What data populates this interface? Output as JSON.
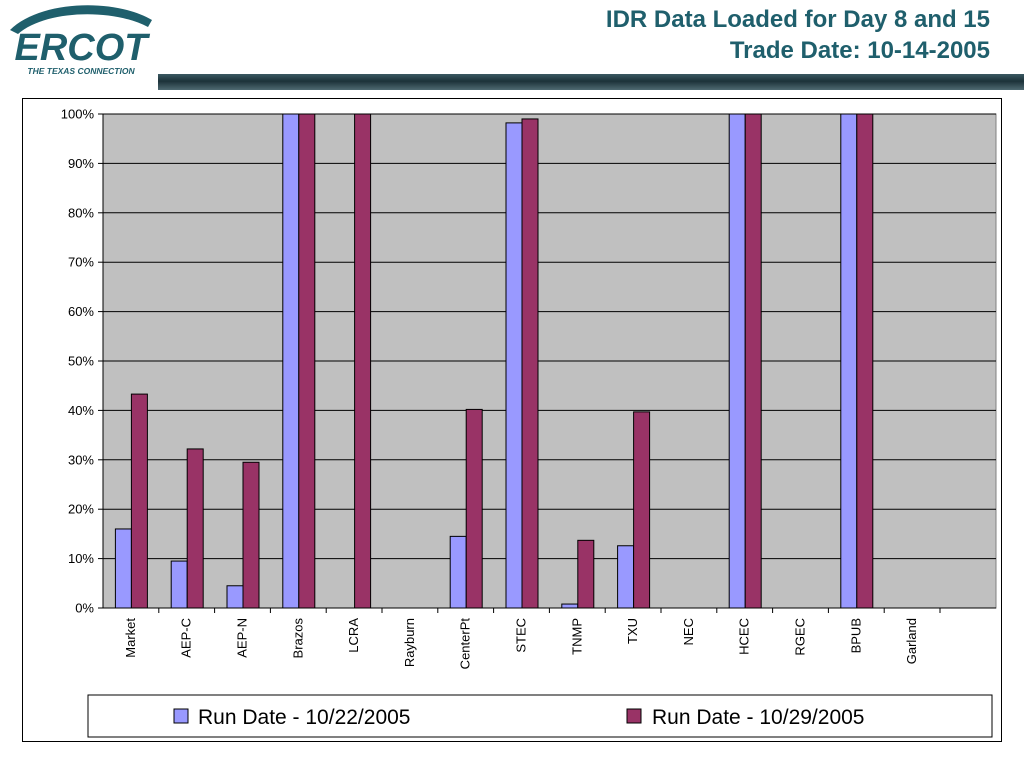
{
  "header": {
    "logo_text": "ERCOT",
    "logo_tagline": "THE TEXAS CONNECTION",
    "title_line1": "IDR Data Loaded for Day 8 and 15",
    "title_line2": "Trade Date: 10-14-2005"
  },
  "colors": {
    "brand_teal": "#1f5f6c",
    "series1": "#9999ff",
    "series2": "#993366",
    "plot_bg": "#c0c0c0"
  },
  "chart_data": {
    "type": "bar",
    "title": "",
    "xlabel": "",
    "ylabel": "",
    "ylim": [
      0,
      100
    ],
    "y_ticks": [
      "0%",
      "10%",
      "20%",
      "30%",
      "40%",
      "50%",
      "60%",
      "70%",
      "80%",
      "90%",
      "100%"
    ],
    "grid": true,
    "legend_position": "bottom",
    "categories": [
      "Market",
      "AEP-C",
      "AEP-N",
      "Brazos",
      "LCRA",
      "Rayburn",
      "CenterPt",
      "STEC",
      "TNMP",
      "TXU",
      "NEC",
      "HCEC",
      "RGEC",
      "BPUB",
      "Garland"
    ],
    "series": [
      {
        "name": "Run Date - 10/22/2005",
        "color": "#9999ff",
        "values": [
          16,
          9.5,
          4.5,
          100,
          0,
          0,
          14.5,
          98.2,
          0.8,
          12.6,
          0,
          100,
          0,
          100,
          0
        ]
      },
      {
        "name": "Run Date - 10/29/2005",
        "color": "#993366",
        "values": [
          43.3,
          32.2,
          29.5,
          100,
          100,
          0,
          40.2,
          99,
          13.7,
          39.7,
          0,
          100,
          0,
          100,
          0
        ]
      }
    ]
  }
}
